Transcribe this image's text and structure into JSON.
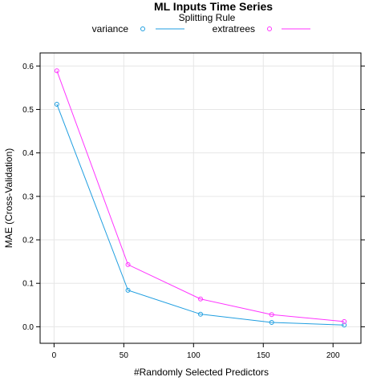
{
  "chart_data": {
    "type": "line",
    "title": "ML Inputs Time Series",
    "legend_title": "Splitting Rule",
    "legend_position": "top",
    "xlabel": "#Randomly Selected Predictors",
    "ylabel": "MAE (Cross-Validation)",
    "grid": true,
    "xlim": [
      -10,
      220
    ],
    "ylim": [
      -0.038,
      0.63
    ],
    "x_ticks": [
      0,
      50,
      100,
      150,
      200
    ],
    "y_ticks": [
      0.0,
      0.1,
      0.2,
      0.3,
      0.4,
      0.5,
      0.6
    ],
    "x_tick_labels": [
      "0",
      "50",
      "100",
      "150",
      "200"
    ],
    "y_tick_labels": [
      "0.0",
      "0.1",
      "0.2",
      "0.3",
      "0.4",
      "0.5",
      "0.6"
    ],
    "x": [
      2,
      53,
      105,
      156,
      208
    ],
    "series": [
      {
        "name": "variance",
        "color": "#1f9ee0",
        "values": [
          0.512,
          0.084,
          0.029,
          0.01,
          0.004
        ]
      },
      {
        "name": "extratrees",
        "color": "#ff33ff",
        "values": [
          0.589,
          0.143,
          0.064,
          0.028,
          0.012
        ]
      }
    ]
  }
}
